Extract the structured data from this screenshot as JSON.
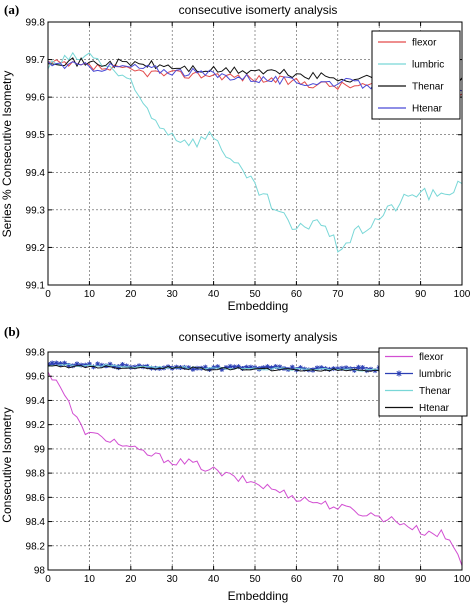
{
  "colors": {
    "flexor_a": "#e34b4b",
    "lumbric_a": "#79d7d7",
    "thenar_a": "#111111",
    "htenar_a": "#4b4bd6",
    "flexor_b": "#d24fd2",
    "lumbric_b": "#2b3fb4",
    "thenar_b": "#79d7d7",
    "htenar_b": "#111111"
  },
  "chart_data": [
    {
      "type": "line",
      "panel_label": "(a)",
      "title": "consecutive isomerty analysis",
      "xlabel": "Embedding",
      "ylabel": "Series % Consecutive Isometry",
      "xlim": [
        0,
        100
      ],
      "ylim": [
        99.1,
        99.8
      ],
      "xticks": [
        0,
        10,
        20,
        30,
        40,
        50,
        60,
        70,
        80,
        90,
        100
      ],
      "yticks": [
        99.1,
        99.2,
        99.3,
        99.4,
        99.5,
        99.6,
        99.7,
        99.8
      ],
      "ytick_labels": [
        "99.1",
        "99.2",
        "99.3",
        "99.4",
        "99.5",
        "99.6",
        "99.7",
        "99.8"
      ],
      "grid": true,
      "legend_position": "top-right",
      "series": [
        {
          "name": "flexor",
          "x": [
            0,
            10,
            20,
            30,
            40,
            50,
            60,
            70,
            80,
            90,
            100
          ],
          "values": [
            99.69,
            99.68,
            99.67,
            99.66,
            99.66,
            99.65,
            99.64,
            99.63,
            99.63,
            99.62,
            99.61
          ]
        },
        {
          "name": "lumbric",
          "x": [
            0,
            5,
            10,
            15,
            20,
            25,
            30,
            35,
            40,
            45,
            50,
            55,
            60,
            65,
            70,
            75,
            80,
            85,
            90,
            95,
            100
          ],
          "values": [
            99.68,
            99.7,
            99.71,
            99.68,
            99.63,
            99.55,
            99.5,
            99.48,
            99.5,
            99.42,
            99.36,
            99.3,
            99.24,
            99.28,
            99.2,
            99.24,
            99.28,
            99.32,
            99.35,
            99.33,
            99.38
          ]
        },
        {
          "name": "Thenar",
          "x": [
            0,
            10,
            20,
            30,
            40,
            50,
            60,
            70,
            80,
            90,
            100
          ],
          "values": [
            99.7,
            99.69,
            99.69,
            99.68,
            99.67,
            99.67,
            99.66,
            99.65,
            99.65,
            99.64,
            99.64
          ]
        },
        {
          "name": "Htenar",
          "x": [
            0,
            10,
            20,
            30,
            40,
            50,
            60,
            70,
            80,
            90,
            100
          ],
          "values": [
            99.69,
            99.68,
            99.68,
            99.67,
            99.66,
            99.65,
            99.64,
            99.64,
            99.63,
            99.62,
            99.61
          ]
        }
      ]
    },
    {
      "type": "line",
      "panel_label": "(b)",
      "title": "consecutive isomerty analysis",
      "xlabel": "Embedding",
      "ylabel": "Consecutive Isometry",
      "xlim": [
        0,
        100
      ],
      "ylim": [
        98,
        99.8
      ],
      "xticks": [
        0,
        10,
        20,
        30,
        40,
        50,
        60,
        70,
        80,
        90,
        100
      ],
      "xtick_labels": [
        "0",
        "10",
        "20",
        "30",
        "40",
        "50",
        "60",
        "70",
        "80",
        "90",
        "100"
      ],
      "yticks": [
        98,
        98.2,
        98.4,
        98.6,
        98.8,
        99,
        99.2,
        99.4,
        99.6,
        99.8
      ],
      "ytick_labels": [
        "98",
        "98.2",
        "98.4",
        "98.6",
        "98.8",
        "99",
        "99.2",
        "99.4",
        "99.6",
        "99.8"
      ],
      "grid": true,
      "legend_position": "top-right",
      "series": [
        {
          "name": "flexor",
          "x": [
            0,
            2,
            4,
            6,
            8,
            10,
            15,
            20,
            25,
            30,
            35,
            40,
            45,
            50,
            55,
            60,
            65,
            70,
            75,
            80,
            85,
            90,
            95,
            98,
            100
          ],
          "values": [
            99.62,
            99.58,
            99.45,
            99.3,
            99.18,
            99.12,
            99.08,
            99.0,
            98.95,
            98.9,
            98.88,
            98.82,
            98.76,
            98.72,
            98.66,
            98.6,
            98.56,
            98.52,
            98.48,
            98.44,
            98.4,
            98.32,
            98.3,
            98.2,
            98.05
          ]
        },
        {
          "name": "lumbric",
          "x": [
            0,
            10,
            20,
            30,
            40,
            50,
            60,
            70,
            80,
            90,
            100
          ],
          "values": [
            99.7,
            99.69,
            99.68,
            99.67,
            99.67,
            99.67,
            99.66,
            99.66,
            99.66,
            99.65,
            99.65
          ]
        },
        {
          "name": "Thenar",
          "x": [
            0,
            10,
            20,
            30,
            40,
            50,
            60,
            70,
            80,
            90,
            100
          ],
          "values": [
            99.69,
            99.69,
            99.68,
            99.67,
            99.67,
            99.66,
            99.66,
            99.66,
            99.65,
            99.65,
            99.64
          ]
        },
        {
          "name": "Htenar",
          "x": [
            0,
            10,
            20,
            30,
            40,
            50,
            60,
            70,
            80,
            90,
            100
          ],
          "values": [
            99.68,
            99.68,
            99.67,
            99.67,
            99.66,
            99.66,
            99.65,
            99.65,
            99.65,
            99.64,
            99.64
          ]
        }
      ]
    }
  ]
}
